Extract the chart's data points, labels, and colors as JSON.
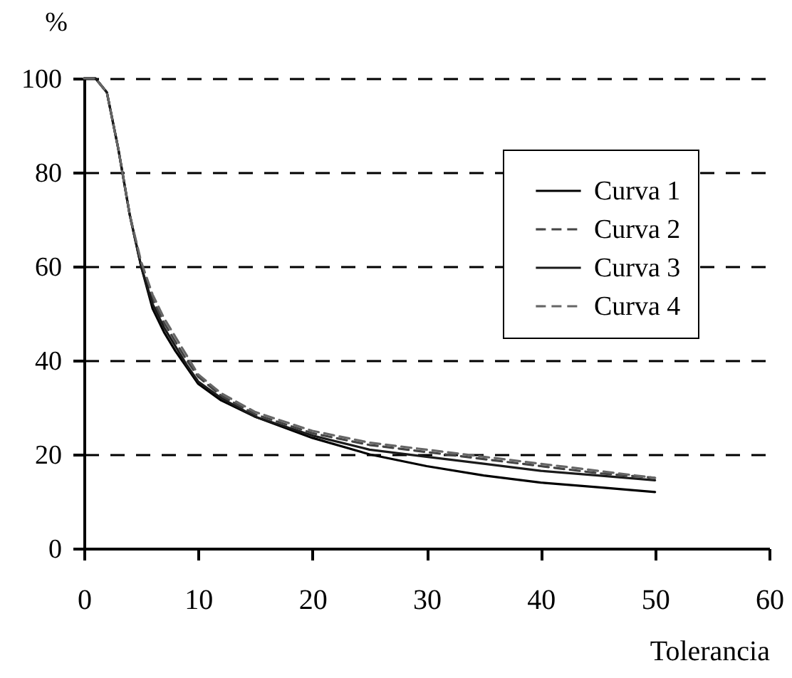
{
  "chart_data": {
    "type": "line",
    "xlabel": "Tolerancia",
    "ylabel": "%",
    "x": [
      0,
      1,
      2,
      3,
      4,
      5,
      6,
      7,
      8,
      9,
      10,
      12,
      15,
      20,
      25,
      30,
      35,
      40,
      45,
      50
    ],
    "series": [
      {
        "name": "Curva 1",
        "color": "#000000",
        "line_style": "solid",
        "values": [
          100,
          100,
          97,
          85,
          71,
          60,
          51,
          46,
          42,
          38.5,
          35,
          31.5,
          28,
          23.5,
          20,
          17.5,
          15.5,
          14,
          13,
          12
        ]
      },
      {
        "name": "Curva 2",
        "color": "#444444",
        "line_style": "dashed",
        "values": [
          100,
          100,
          97,
          85,
          71,
          60,
          53,
          48,
          44,
          40,
          36.5,
          32.5,
          28.5,
          24.5,
          22,
          20.5,
          19,
          17.5,
          16,
          15
        ]
      },
      {
        "name": "Curva 3",
        "color": "#1a1a1a",
        "line_style": "solid",
        "values": [
          100,
          100,
          97,
          85,
          71,
          60,
          52,
          47,
          43,
          39,
          35.5,
          32,
          28,
          24,
          21,
          19.5,
          18,
          16.5,
          15.5,
          14.5
        ]
      },
      {
        "name": "Curva 4",
        "color": "#666666",
        "line_style": "dashed",
        "values": [
          100,
          100,
          97,
          85,
          71,
          61,
          54,
          49,
          45,
          41,
          37,
          33,
          29,
          25,
          22.5,
          21,
          19.5,
          18,
          16.5,
          15
        ]
      }
    ],
    "xlim": [
      0,
      60
    ],
    "xticks": [
      0,
      10,
      20,
      30,
      40,
      50,
      60
    ],
    "ylim": [
      0,
      100
    ],
    "yticks": [
      0,
      20,
      40,
      60,
      80,
      100
    ],
    "grid": "y",
    "legend": "top right"
  }
}
